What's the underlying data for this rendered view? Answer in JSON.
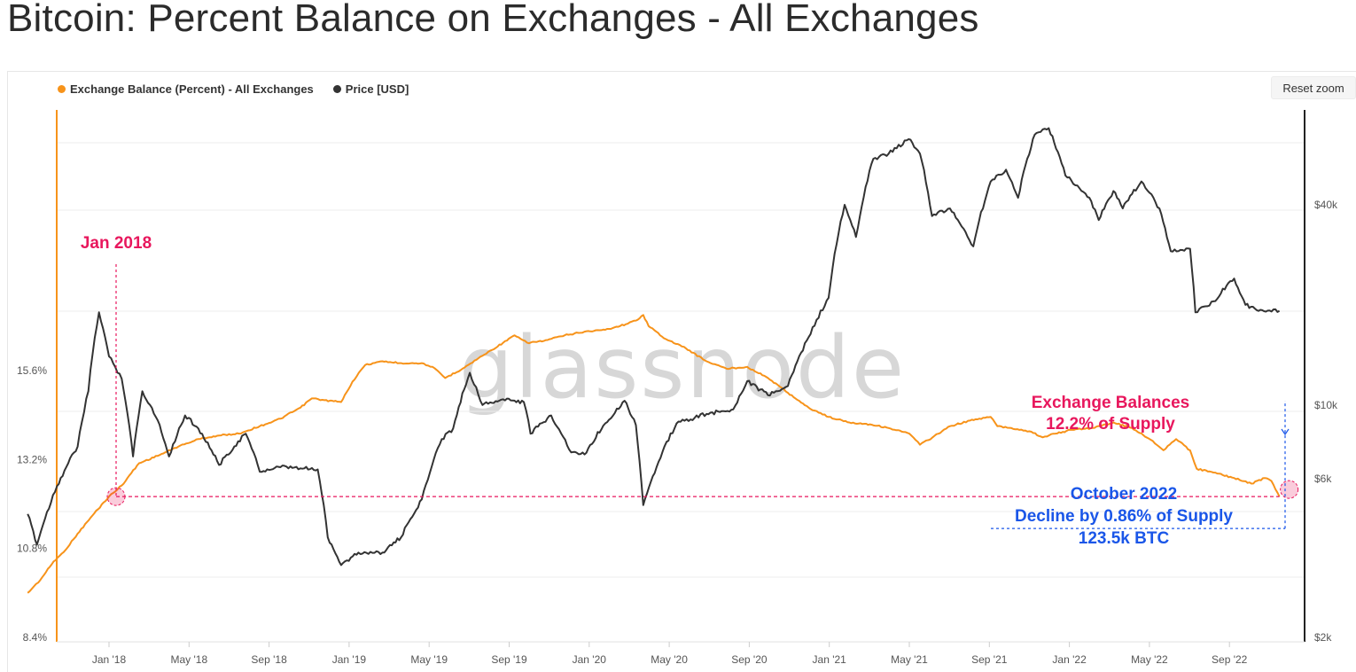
{
  "title": "Bitcoin: Percent Balance on Exchanges - All Exchanges",
  "reset_zoom": "Reset zoom",
  "watermark": "glassnode",
  "legend": [
    {
      "label": "Exchange Balance (Percent) - All Exchanges",
      "color": "#f7931a"
    },
    {
      "label": "Price [USD]",
      "color": "#333333"
    }
  ],
  "annotations": {
    "jan2018": "Jan 2018",
    "balance_line1": "Exchange Balances",
    "balance_line2": "12.2% of Supply",
    "decline_line1": "October 2022",
    "decline_line2": "Decline by 0.86% of Supply",
    "decline_line3": "123.5k BTC",
    "highlight_color": "#e8175d",
    "decline_color": "#1a56e8"
  },
  "chart_data": {
    "type": "line",
    "x_ticks": [
      "Jan '18",
      "May '18",
      "Sep '18",
      "Jan '19",
      "May '19",
      "Sep '19",
      "Jan '20",
      "May '20",
      "Sep '20",
      "Jan '21",
      "May '21",
      "Sep '21",
      "Jan '22",
      "May '22",
      "Sep '22"
    ],
    "y_left_ticks": [
      "15.6%",
      "13.2%",
      "10.8%",
      "8.4%"
    ],
    "y_left_range": [
      8.4,
      17.0
    ],
    "y_right_ticks": [
      "$40k",
      "$10k",
      "$6k",
      "$2k"
    ],
    "y_right_scale": "log",
    "y_right_range": [
      2000,
      90000
    ],
    "series": [
      {
        "name": "Exchange Balance (Percent) - All Exchanges",
        "color": "#f7931a",
        "axis": "left",
        "points": [
          [
            "2017-09-01",
            9.6
          ],
          [
            "2017-09-20",
            9.95
          ],
          [
            "2017-10-10",
            10.45
          ],
          [
            "2017-10-25",
            10.7
          ],
          [
            "2017-11-15",
            11.2
          ],
          [
            "2017-12-10",
            11.75
          ],
          [
            "2018-01-01",
            12.2
          ],
          [
            "2018-01-20",
            12.5
          ],
          [
            "2018-02-15",
            13.1
          ],
          [
            "2018-03-15",
            13.3
          ],
          [
            "2018-04-15",
            13.55
          ],
          [
            "2018-05-15",
            13.75
          ],
          [
            "2018-06-15",
            13.85
          ],
          [
            "2018-07-15",
            13.9
          ],
          [
            "2018-08-15",
            14.1
          ],
          [
            "2018-09-15",
            14.3
          ],
          [
            "2018-10-15",
            14.6
          ],
          [
            "2018-11-01",
            14.85
          ],
          [
            "2018-11-20",
            14.8
          ],
          [
            "2018-12-15",
            14.75
          ],
          [
            "2019-01-01",
            15.3
          ],
          [
            "2019-01-20",
            15.75
          ],
          [
            "2019-02-15",
            15.85
          ],
          [
            "2019-03-15",
            15.8
          ],
          [
            "2019-04-15",
            15.8
          ],
          [
            "2019-05-01",
            15.7
          ],
          [
            "2019-05-20",
            15.4
          ],
          [
            "2019-06-15",
            15.65
          ],
          [
            "2019-07-15",
            16.0
          ],
          [
            "2019-08-15",
            16.35
          ],
          [
            "2019-09-01",
            16.55
          ],
          [
            "2019-09-20",
            16.35
          ],
          [
            "2019-10-15",
            16.4
          ],
          [
            "2019-11-15",
            16.55
          ],
          [
            "2019-12-15",
            16.65
          ],
          [
            "2020-01-15",
            16.7
          ],
          [
            "2020-02-15",
            16.85
          ],
          [
            "2020-03-01",
            16.95
          ],
          [
            "2020-03-12",
            17.1
          ],
          [
            "2020-03-20",
            16.8
          ],
          [
            "2020-04-15",
            16.45
          ],
          [
            "2020-05-15",
            16.2
          ],
          [
            "2020-06-15",
            15.85
          ],
          [
            "2020-07-15",
            15.65
          ],
          [
            "2020-08-15",
            15.7
          ],
          [
            "2020-09-15",
            15.4
          ],
          [
            "2020-10-15",
            15.0
          ],
          [
            "2020-11-15",
            14.6
          ],
          [
            "2020-12-15",
            14.35
          ],
          [
            "2021-01-15",
            14.2
          ],
          [
            "2021-02-15",
            14.15
          ],
          [
            "2021-03-15",
            14.05
          ],
          [
            "2021-04-15",
            13.9
          ],
          [
            "2021-05-01",
            13.6
          ],
          [
            "2021-05-20",
            13.8
          ],
          [
            "2021-06-15",
            14.1
          ],
          [
            "2021-07-15",
            14.25
          ],
          [
            "2021-08-15",
            14.35
          ],
          [
            "2021-08-25",
            14.1
          ],
          [
            "2021-09-15",
            14.05
          ],
          [
            "2021-10-15",
            13.95
          ],
          [
            "2021-11-01",
            13.8
          ],
          [
            "2021-11-20",
            13.9
          ],
          [
            "2021-12-15",
            14.0
          ],
          [
            "2022-01-15",
            14.05
          ],
          [
            "2022-02-15",
            14.2
          ],
          [
            "2022-03-15",
            14.05
          ],
          [
            "2022-04-15",
            13.7
          ],
          [
            "2022-05-01",
            13.45
          ],
          [
            "2022-05-20",
            13.75
          ],
          [
            "2022-06-10",
            13.45
          ],
          [
            "2022-06-20",
            12.95
          ],
          [
            "2022-07-15",
            12.85
          ],
          [
            "2022-08-15",
            12.7
          ],
          [
            "2022-09-10",
            12.55
          ],
          [
            "2022-09-30",
            12.7
          ],
          [
            "2022-10-10",
            12.62
          ],
          [
            "2022-10-22",
            12.2
          ]
        ]
      },
      {
        "name": "Price [USD]",
        "color": "#333333",
        "axis": "right",
        "points": [
          [
            "2017-09-01",
            4700
          ],
          [
            "2017-09-15",
            3800
          ],
          [
            "2017-10-15",
            5700
          ],
          [
            "2017-11-15",
            7500
          ],
          [
            "2017-12-01",
            11000
          ],
          [
            "2017-12-17",
            19000
          ],
          [
            "2018-01-01",
            14000
          ],
          [
            "2018-01-20",
            12000
          ],
          [
            "2018-02-06",
            7000
          ],
          [
            "2018-02-20",
            11000
          ],
          [
            "2018-03-15",
            9000
          ],
          [
            "2018-04-01",
            7000
          ],
          [
            "2018-04-25",
            9300
          ],
          [
            "2018-05-15",
            8500
          ],
          [
            "2018-06-15",
            6600
          ],
          [
            "2018-07-25",
            8200
          ],
          [
            "2018-08-15",
            6300
          ],
          [
            "2018-09-15",
            6500
          ],
          [
            "2018-10-15",
            6450
          ],
          [
            "2018-11-10",
            6400
          ],
          [
            "2018-11-25",
            4000
          ],
          [
            "2018-12-15",
            3300
          ],
          [
            "2019-01-10",
            3600
          ],
          [
            "2019-02-15",
            3600
          ],
          [
            "2019-03-15",
            4000
          ],
          [
            "2019-04-15",
            5200
          ],
          [
            "2019-05-15",
            7900
          ],
          [
            "2019-06-01",
            8500
          ],
          [
            "2019-06-26",
            12500
          ],
          [
            "2019-07-15",
            10000
          ],
          [
            "2019-08-15",
            10400
          ],
          [
            "2019-09-15",
            10200
          ],
          [
            "2019-09-25",
            8200
          ],
          [
            "2019-10-26",
            9300
          ],
          [
            "2019-11-25",
            7200
          ],
          [
            "2019-12-15",
            7100
          ],
          [
            "2020-01-15",
            8800
          ],
          [
            "2020-02-13",
            10300
          ],
          [
            "2020-03-01",
            8700
          ],
          [
            "2020-03-12",
            5000
          ],
          [
            "2020-04-01",
            6500
          ],
          [
            "2020-05-01",
            8800
          ],
          [
            "2020-06-15",
            9400
          ],
          [
            "2020-07-25",
            9700
          ],
          [
            "2020-08-15",
            11800
          ],
          [
            "2020-09-15",
            10700
          ],
          [
            "2020-10-15",
            11400
          ],
          [
            "2020-11-15",
            16000
          ],
          [
            "2020-12-15",
            21000
          ],
          [
            "2021-01-08",
            40000
          ],
          [
            "2021-01-25",
            32000
          ],
          [
            "2021-02-20",
            55000
          ],
          [
            "2021-03-15",
            57000
          ],
          [
            "2021-04-14",
            63000
          ],
          [
            "2021-05-01",
            57000
          ],
          [
            "2021-05-19",
            37000
          ],
          [
            "2021-06-15",
            39000
          ],
          [
            "2021-07-20",
            30000
          ],
          [
            "2021-08-15",
            47000
          ],
          [
            "2021-09-07",
            51000
          ],
          [
            "2021-09-25",
            42000
          ],
          [
            "2021-10-20",
            65000
          ],
          [
            "2021-11-10",
            68000
          ],
          [
            "2021-12-05",
            49000
          ],
          [
            "2022-01-10",
            42000
          ],
          [
            "2022-01-24",
            36000
          ],
          [
            "2022-02-15",
            44000
          ],
          [
            "2022-03-01",
            39000
          ],
          [
            "2022-03-29",
            47000
          ],
          [
            "2022-04-25",
            39000
          ],
          [
            "2022-05-12",
            29000
          ],
          [
            "2022-06-10",
            29500
          ],
          [
            "2022-06-18",
            19000
          ],
          [
            "2022-07-15",
            20500
          ],
          [
            "2022-08-15",
            24000
          ],
          [
            "2022-09-01",
            20000
          ],
          [
            "2022-09-15",
            19500
          ],
          [
            "2022-10-10",
            19100
          ],
          [
            "2022-10-22",
            19200
          ]
        ]
      }
    ],
    "annotation_level_pct": 12.2,
    "annotation_x_dates": [
      "2018-01-01",
      "2022-10-22"
    ],
    "decline_level_pct": 11.34
  }
}
